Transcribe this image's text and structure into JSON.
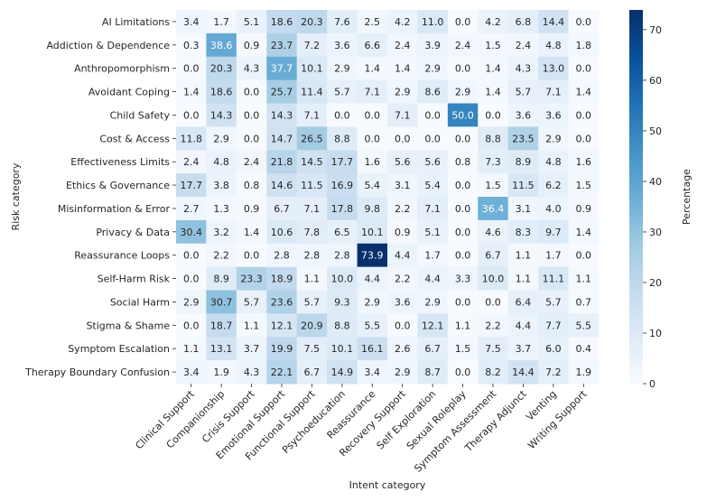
{
  "chart_data": {
    "type": "heatmap",
    "xlabel": "Intent category",
    "ylabel": "Risk category",
    "colorbar_label": "Percentage",
    "colormap": "Blues",
    "vlim": [
      0,
      73.9
    ],
    "colorbar_ticks": [
      0,
      10,
      20,
      30,
      40,
      50,
      60,
      70
    ],
    "x_categories": [
      "Clinical Support",
      "Companionship",
      "Crisis Support",
      "Emotional Support",
      "Functional Support",
      "Psychoeducation",
      "Reassurance",
      "Recovery Support",
      "Self Exploration",
      "Sexual Roleplay",
      "Symptom Assessment",
      "Therapy Adjunct",
      "Venting",
      "Writing Support"
    ],
    "y_categories": [
      "AI Limitations",
      "Addiction & Dependence",
      "Anthropomorphism",
      "Avoidant Coping",
      "Child Safety",
      "Cost & Access",
      "Effectiveness Limits",
      "Ethics & Governance",
      "Misinformation & Error",
      "Privacy & Data",
      "Reassurance Loops",
      "Self-Harm Risk",
      "Social Harm",
      "Stigma & Shame",
      "Symptom Escalation",
      "Therapy Boundary Confusion"
    ],
    "values": [
      [
        3.4,
        1.7,
        5.1,
        18.6,
        20.3,
        7.6,
        2.5,
        4.2,
        11.0,
        0.0,
        4.2,
        6.8,
        14.4,
        0.0
      ],
      [
        0.3,
        38.6,
        0.9,
        23.7,
        7.2,
        3.6,
        6.6,
        2.4,
        3.9,
        2.4,
        1.5,
        2.4,
        4.8,
        1.8
      ],
      [
        0.0,
        20.3,
        4.3,
        37.7,
        10.1,
        2.9,
        1.4,
        1.4,
        2.9,
        0.0,
        1.4,
        4.3,
        13.0,
        0.0
      ],
      [
        1.4,
        18.6,
        0.0,
        25.7,
        11.4,
        5.7,
        7.1,
        2.9,
        8.6,
        2.9,
        1.4,
        5.7,
        7.1,
        1.4
      ],
      [
        0.0,
        14.3,
        0.0,
        14.3,
        7.1,
        0.0,
        0.0,
        7.1,
        0.0,
        50.0,
        0.0,
        3.6,
        3.6,
        0.0
      ],
      [
        11.8,
        2.9,
        0.0,
        14.7,
        26.5,
        8.8,
        0.0,
        0.0,
        0.0,
        0.0,
        8.8,
        23.5,
        2.9,
        0.0
      ],
      [
        2.4,
        4.8,
        2.4,
        21.8,
        14.5,
        17.7,
        1.6,
        5.6,
        5.6,
        0.8,
        7.3,
        8.9,
        4.8,
        1.6
      ],
      [
        17.7,
        3.8,
        0.8,
        14.6,
        11.5,
        16.9,
        5.4,
        3.1,
        5.4,
        0.0,
        1.5,
        11.5,
        6.2,
        1.5
      ],
      [
        2.7,
        1.3,
        0.9,
        6.7,
        7.1,
        17.8,
        9.8,
        2.2,
        7.1,
        0.0,
        36.4,
        3.1,
        4.0,
        0.9
      ],
      [
        30.4,
        3.2,
        1.4,
        10.6,
        7.8,
        6.5,
        10.1,
        0.9,
        5.1,
        0.0,
        4.6,
        8.3,
        9.7,
        1.4
      ],
      [
        0.0,
        2.2,
        0.0,
        2.8,
        2.8,
        2.8,
        73.9,
        4.4,
        1.7,
        0.0,
        6.7,
        1.1,
        1.7,
        0.0
      ],
      [
        0.0,
        8.9,
        23.3,
        18.9,
        1.1,
        10.0,
        4.4,
        2.2,
        4.4,
        3.3,
        10.0,
        1.1,
        11.1,
        1.1
      ],
      [
        2.9,
        30.7,
        5.7,
        23.6,
        5.7,
        9.3,
        2.9,
        3.6,
        2.9,
        0.0,
        0.0,
        6.4,
        5.7,
        0.7
      ],
      [
        0.0,
        18.7,
        1.1,
        12.1,
        20.9,
        8.8,
        5.5,
        0.0,
        12.1,
        1.1,
        2.2,
        4.4,
        7.7,
        5.5
      ],
      [
        1.1,
        13.1,
        3.7,
        19.9,
        7.5,
        10.1,
        16.1,
        2.6,
        6.7,
        1.5,
        7.5,
        3.7,
        6.0,
        0.4
      ],
      [
        3.4,
        1.9,
        4.3,
        22.1,
        6.7,
        14.9,
        3.4,
        2.9,
        8.7,
        0.0,
        8.2,
        14.4,
        7.2,
        1.9
      ]
    ]
  }
}
